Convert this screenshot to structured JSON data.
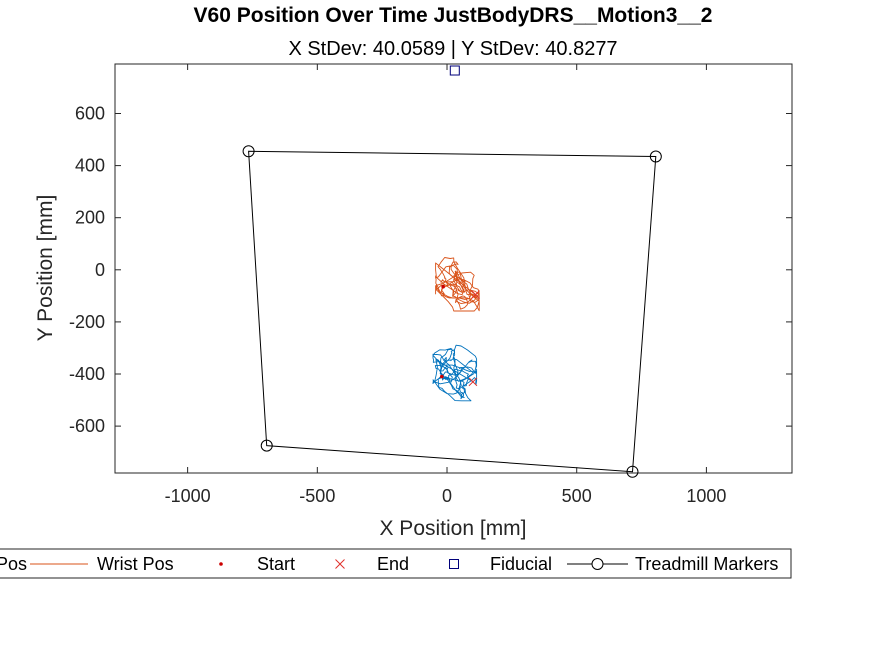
{
  "chart_data": {
    "type": "line",
    "title": "V60 Position Over Time JustBodyDRS__Motion3__2",
    "subtitle": "X StDev: 40.0589  |  Y StDev: 40.8277",
    "xlabel": "X Position [mm]",
    "ylabel": "Y Position [mm]",
    "xlim": [
      -1280,
      1330
    ],
    "ylim": [
      -780,
      790
    ],
    "xticks": [
      -1000,
      -500,
      0,
      500,
      1000
    ],
    "xtick_labels": [
      "-1000",
      "-500",
      "0",
      "500",
      "1000"
    ],
    "yticks": [
      -600,
      -400,
      -200,
      0,
      200,
      400,
      600
    ],
    "ytick_labels": [
      "-600",
      "-400",
      "-200",
      "0",
      "200",
      "400",
      "600"
    ],
    "grid": false,
    "legend_position": "bottom-outside",
    "series": [
      {
        "name": "Pos",
        "kind": "trajectory",
        "color": "#0072BD",
        "center": [
          30,
          -395
        ],
        "spread": [
          40,
          40
        ],
        "seed": 7,
        "n": 260,
        "start": [
          -20,
          -410
        ],
        "end": [
          100,
          -430
        ]
      },
      {
        "name": "Wrist Pos",
        "kind": "trajectory",
        "color": "#D95319",
        "center": [
          40,
          -50
        ],
        "spread": [
          40,
          40
        ],
        "seed": 19,
        "n": 260,
        "start": [
          -15,
          -65
        ],
        "end": [
          110,
          -95
        ]
      },
      {
        "name": "Start",
        "kind": "marker",
        "color": "#cc0000"
      },
      {
        "name": "End",
        "kind": "marker",
        "color": "#e0302a"
      },
      {
        "name": "Fiducial",
        "kind": "marker",
        "color": "#00007a",
        "points": [
          [
            30,
            765
          ]
        ]
      },
      {
        "name": "Treadmill Markers",
        "kind": "polygon",
        "color": "#000000",
        "points": [
          [
            -765,
            455
          ],
          [
            805,
            435
          ],
          [
            715,
            -775
          ],
          [
            -695,
            -675
          ]
        ]
      }
    ],
    "legend": [
      "Pos",
      "Wrist Pos",
      "Start",
      "End",
      "Fiducial",
      "Treadmill Markers"
    ]
  }
}
